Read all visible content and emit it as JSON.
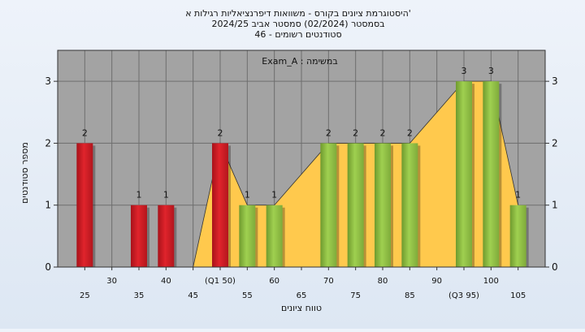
{
  "title": {
    "line1": "היסטוגרמת ציונים בקורס - משוואות דיפרנציאליות רגילות א'",
    "line2": "בסמסטר  (02/2024)  סמסטר אביב 2024/25",
    "line3": "46 - סטודנטים רשומים"
  },
  "chart_data": {
    "type": "bar",
    "title": "היסטוגרמת ציונים בקורס - משוואות דיפרנציאליות רגילות א'",
    "annotation": "Exam_A : במשימה",
    "xlabel": "טווח ציונים",
    "ylabel": "מספר סטודנטים",
    "ylim": [
      0,
      3.5
    ],
    "yticks": [
      "0",
      "1",
      "2",
      "3"
    ],
    "xlim": [
      20,
      110
    ],
    "x_tick_labels": [
      {
        "x": 25,
        "label": "25",
        "row": 1
      },
      {
        "x": 30,
        "label": "30",
        "row": 0
      },
      {
        "x": 35,
        "label": "35",
        "row": 1
      },
      {
        "x": 40,
        "label": "40",
        "row": 0
      },
      {
        "x": 45,
        "label": "45",
        "row": 1
      },
      {
        "x": 50,
        "label": "(Q1 50)",
        "row": 0
      },
      {
        "x": 55,
        "label": "55",
        "row": 1
      },
      {
        "x": 60,
        "label": "60",
        "row": 0
      },
      {
        "x": 65,
        "label": "65",
        "row": 1
      },
      {
        "x": 70,
        "label": "70",
        "row": 0
      },
      {
        "x": 75,
        "label": "75",
        "row": 1
      },
      {
        "x": 80,
        "label": "80",
        "row": 0
      },
      {
        "x": 85,
        "label": "85",
        "row": 1
      },
      {
        "x": 90,
        "label": "90",
        "row": 0
      },
      {
        "x": 95,
        "label": "(Q3 95)",
        "row": 1
      },
      {
        "x": 100,
        "label": "100",
        "row": 0
      },
      {
        "x": 105,
        "label": "105",
        "row": 1
      }
    ],
    "bars": [
      {
        "x": 25,
        "value": 2,
        "label": "2",
        "color": "red"
      },
      {
        "x": 35,
        "value": 1,
        "label": "1",
        "color": "red"
      },
      {
        "x": 40,
        "value": 1,
        "label": "1",
        "color": "red"
      },
      {
        "x": 50,
        "value": 2,
        "label": "2",
        "color": "red"
      },
      {
        "x": 55,
        "value": 1,
        "label": "1",
        "color": "green"
      },
      {
        "x": 60,
        "value": 1,
        "label": "1",
        "color": "green"
      },
      {
        "x": 70,
        "value": 2,
        "label": "2",
        "color": "green"
      },
      {
        "x": 75,
        "value": 2,
        "label": "2",
        "color": "green"
      },
      {
        "x": 80,
        "value": 2,
        "label": "2",
        "color": "green"
      },
      {
        "x": 85,
        "value": 2,
        "label": "2",
        "color": "green"
      },
      {
        "x": 95,
        "value": 3,
        "label": "3",
        "color": "green"
      },
      {
        "x": 100,
        "value": 3,
        "label": "3",
        "color": "green"
      },
      {
        "x": 105,
        "value": 1,
        "label": "1",
        "color": "green"
      }
    ],
    "area_series": {
      "color": "#ffc94d",
      "points": [
        [
          45,
          0
        ],
        [
          50,
          2
        ],
        [
          55,
          1
        ],
        [
          60,
          1
        ],
        [
          70,
          2
        ],
        [
          75,
          2
        ],
        [
          80,
          2
        ],
        [
          85,
          2
        ],
        [
          95,
          3
        ],
        [
          100,
          3
        ],
        [
          105,
          1
        ]
      ]
    },
    "colors": {
      "plot_bg": "#a3a3a3",
      "grid": "#6e6e6e",
      "red_bar": "#e0242c",
      "green_bar": "#9fd050",
      "area": "#ffc94d"
    },
    "grid": true
  }
}
